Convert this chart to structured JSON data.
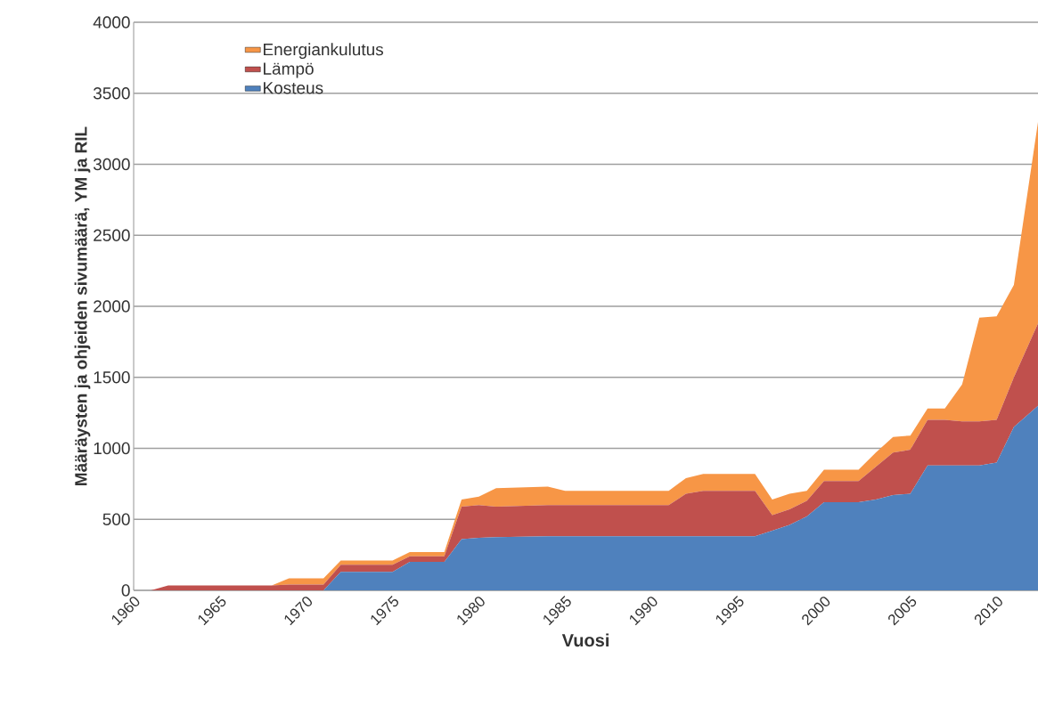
{
  "chart_data": {
    "type": "area",
    "stacked": true,
    "xlabel": "Vuosi",
    "ylabel": "Määräysten ja ohjeiden sivumäärä, YM ja RIL",
    "x": [
      1960,
      1961,
      1962,
      1968,
      1969,
      1971,
      1972,
      1975,
      1976,
      1978,
      1979,
      1980,
      1981,
      1984,
      1985,
      1991,
      1992,
      1993,
      1996,
      1997,
      1998,
      1999,
      2000,
      2002,
      2003,
      2004,
      2005,
      2006,
      2007,
      2008,
      2009,
      2010,
      2011,
      2012.4
    ],
    "series": [
      {
        "name": "Kosteus",
        "color": "#4f81bd",
        "values": [
          0,
          0,
          0,
          0,
          0,
          0,
          130,
          130,
          200,
          200,
          360,
          370,
          375,
          380,
          380,
          380,
          380,
          380,
          380,
          420,
          460,
          520,
          620,
          620,
          640,
          670,
          680,
          880,
          880,
          880,
          880,
          900,
          1150,
          1300
        ]
      },
      {
        "name": "Lämpö",
        "color": "#c0504d",
        "values": [
          0,
          0,
          35,
          35,
          40,
          40,
          50,
          50,
          40,
          40,
          230,
          230,
          215,
          220,
          220,
          220,
          300,
          320,
          320,
          110,
          110,
          110,
          150,
          150,
          230,
          300,
          310,
          320,
          320,
          310,
          310,
          300,
          350,
          580
        ]
      },
      {
        "name": "Energiankulutus",
        "color": "#f79646",
        "values": [
          0,
          0,
          0,
          0,
          45,
          45,
          30,
          30,
          30,
          30,
          50,
          60,
          130,
          130,
          100,
          100,
          110,
          120,
          120,
          110,
          110,
          70,
          80,
          80,
          100,
          110,
          100,
          80,
          80,
          260,
          730,
          730,
          650,
          1420
        ]
      }
    ],
    "xlim": [
      1960,
      2012.4
    ],
    "xticks": [
      1960,
      1965,
      1970,
      1975,
      1980,
      1985,
      1990,
      1995,
      2000,
      2005,
      2010
    ],
    "ylim": [
      0,
      4000
    ],
    "yticks": [
      0,
      500,
      1000,
      1500,
      2000,
      2500,
      3000,
      3500,
      4000
    ],
    "grid": "y",
    "legend": "top left"
  }
}
